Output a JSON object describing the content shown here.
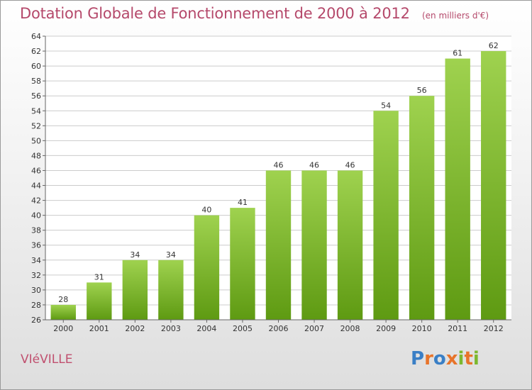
{
  "header": {
    "title": "Dotation Globale de Fonctionnement de 2000 à 2012",
    "subtitle": "(en milliers d'€)"
  },
  "commune": "VIéVILLE",
  "logo": {
    "text": "Proxiti",
    "letter_colors": [
      "#3a7fc6",
      "#e8742a",
      "#3a7fc6",
      "#e8742a",
      "#7cb82f",
      "#e8742a",
      "#7cb82f"
    ]
  },
  "chart_data": {
    "type": "bar",
    "title": "Dotation Globale de Fonctionnement de 2000 à 2012",
    "subtitle": "(en milliers d'€)",
    "xlabel": "",
    "ylabel": "",
    "categories": [
      "2000",
      "2001",
      "2002",
      "2003",
      "2004",
      "2005",
      "2006",
      "2007",
      "2008",
      "2009",
      "2010",
      "2011",
      "2012"
    ],
    "values": [
      28,
      31,
      34,
      34,
      40,
      41,
      46,
      46,
      46,
      54,
      56,
      61,
      62
    ],
    "ylim": [
      26,
      64
    ],
    "ytick_step": 2,
    "grid": true,
    "legend": "none",
    "bar_color_top": "#9fd24f",
    "bar_color_bottom": "#5e9a12",
    "grid_color": "#cccccc"
  }
}
